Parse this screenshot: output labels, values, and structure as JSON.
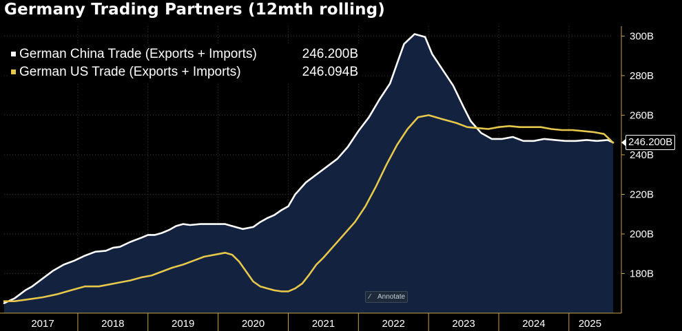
{
  "header": {
    "title": "Germany Trading Partners (12mth rolling)"
  },
  "legend": {
    "items": [
      {
        "label": "German China Trade (Exports + Imports)",
        "value": "246.200B",
        "color": "#ffffff"
      },
      {
        "label": "German US Trade (Exports + Imports)",
        "value": "246.094B",
        "color": "#e6c84c"
      }
    ]
  },
  "annotate_button": {
    "label": "Annotate",
    "icon": "pencil-icon"
  },
  "last_value_tag": "246.200B",
  "colors": {
    "background": "#000000",
    "area_fill": "#13223f",
    "china": "#ffffff",
    "us": "#e6c84c",
    "axis": "#c8a54a"
  },
  "chart_data": {
    "type": "line",
    "title": "Germany Trading Partners (12mth rolling)",
    "xlabel": "",
    "ylabel": "",
    "ylim": [
      160,
      305
    ],
    "xlim": [
      2016.95,
      2025.63
    ],
    "y_ticks": [
      {
        "value": 180,
        "label": "180B"
      },
      {
        "value": 200,
        "label": "200B"
      },
      {
        "value": 220,
        "label": "220B"
      },
      {
        "value": 240,
        "label": "240B"
      },
      {
        "value": 260,
        "label": "260B"
      },
      {
        "value": 280,
        "label": "280B"
      },
      {
        "value": 300,
        "label": "300B"
      }
    ],
    "x_ticks": [
      {
        "value": 2017.5,
        "label": "2017"
      },
      {
        "value": 2018.5,
        "label": "2018"
      },
      {
        "value": 2019.5,
        "label": "2019"
      },
      {
        "value": 2020.5,
        "label": "2020"
      },
      {
        "value": 2021.5,
        "label": "2021"
      },
      {
        "value": 2022.5,
        "label": "2022"
      },
      {
        "value": 2023.5,
        "label": "2023"
      },
      {
        "value": 2024.5,
        "label": "2024"
      },
      {
        "value": 2025.3,
        "label": "2025"
      }
    ],
    "year_dividers": [
      2018,
      2019,
      2020,
      2021,
      2022,
      2023,
      2024,
      2025
    ],
    "series": [
      {
        "name": "German China Trade (Exports + Imports)",
        "color": "#ffffff",
        "fill": true,
        "x": [
          2016.95,
          2017.1,
          2017.25,
          2017.35,
          2017.5,
          2017.65,
          2017.8,
          2017.95,
          2018.1,
          2018.25,
          2018.4,
          2018.5,
          2018.6,
          2018.75,
          2018.9,
          2019.0,
          2019.1,
          2019.2,
          2019.3,
          2019.4,
          2019.5,
          2019.6,
          2019.75,
          2019.9,
          2020.0,
          2020.1,
          2020.2,
          2020.35,
          2020.5,
          2020.6,
          2020.7,
          2020.8,
          2020.9,
          2021.0,
          2021.1,
          2021.25,
          2021.4,
          2021.55,
          2021.7,
          2021.85,
          2022.0,
          2022.15,
          2022.3,
          2022.45,
          2022.55,
          2022.65,
          2022.8,
          2022.95,
          2023.05,
          2023.2,
          2023.35,
          2023.5,
          2023.6,
          2023.75,
          2023.9,
          2024.05,
          2024.2,
          2024.35,
          2024.5,
          2024.65,
          2024.8,
          2024.95,
          2025.1,
          2025.25,
          2025.4,
          2025.55,
          2025.63
        ],
        "values": [
          165,
          167.5,
          171.5,
          173.5,
          177.5,
          181.5,
          184.5,
          186.5,
          189,
          191,
          191.5,
          193,
          193.5,
          196,
          198,
          199.5,
          199.5,
          200.5,
          202,
          204,
          205,
          204.5,
          205,
          205,
          205,
          205,
          204,
          202.5,
          203.5,
          206,
          208,
          209.5,
          212,
          214,
          220,
          226,
          230,
          234,
          238,
          244,
          252,
          259,
          268,
          276,
          286,
          296,
          301,
          299.5,
          291,
          283,
          275,
          264,
          257,
          251,
          248,
          248,
          249,
          247,
          247,
          248,
          247.5,
          247,
          247,
          247.5,
          247,
          247.5,
          246.2
        ]
      },
      {
        "name": "German US Trade (Exports + Imports)",
        "color": "#e6c84c",
        "fill": false,
        "x": [
          2016.95,
          2017.1,
          2017.3,
          2017.5,
          2017.7,
          2017.9,
          2018.1,
          2018.3,
          2018.45,
          2018.6,
          2018.75,
          2018.9,
          2019.05,
          2019.2,
          2019.35,
          2019.5,
          2019.65,
          2019.8,
          2019.95,
          2020.1,
          2020.2,
          2020.3,
          2020.4,
          2020.5,
          2020.6,
          2020.7,
          2020.8,
          2020.9,
          2021.0,
          2021.1,
          2021.2,
          2021.3,
          2021.4,
          2021.5,
          2021.65,
          2021.8,
          2021.95,
          2022.1,
          2022.25,
          2022.4,
          2022.55,
          2022.7,
          2022.85,
          2023.0,
          2023.1,
          2023.2,
          2023.3,
          2023.4,
          2023.55,
          2023.7,
          2023.85,
          2024.0,
          2024.15,
          2024.3,
          2024.45,
          2024.6,
          2024.75,
          2024.9,
          2025.05,
          2025.2,
          2025.35,
          2025.5,
          2025.63
        ],
        "values": [
          166,
          166,
          167,
          168,
          169.5,
          171.5,
          173.5,
          173.5,
          174.5,
          175.5,
          176.5,
          178,
          179,
          181,
          183,
          184.5,
          186.5,
          188.5,
          189.5,
          190.5,
          189.5,
          186,
          181,
          176,
          173.5,
          172.5,
          171.5,
          171,
          171,
          172.5,
          175,
          179.5,
          184.5,
          188,
          194,
          200,
          206,
          214,
          224,
          235,
          245,
          253,
          259,
          260,
          259,
          258,
          257,
          256,
          254,
          253.5,
          253,
          254,
          254.5,
          254,
          254,
          254,
          253,
          252.5,
          252.5,
          252,
          251.5,
          250.5,
          246.094
        ]
      }
    ]
  }
}
